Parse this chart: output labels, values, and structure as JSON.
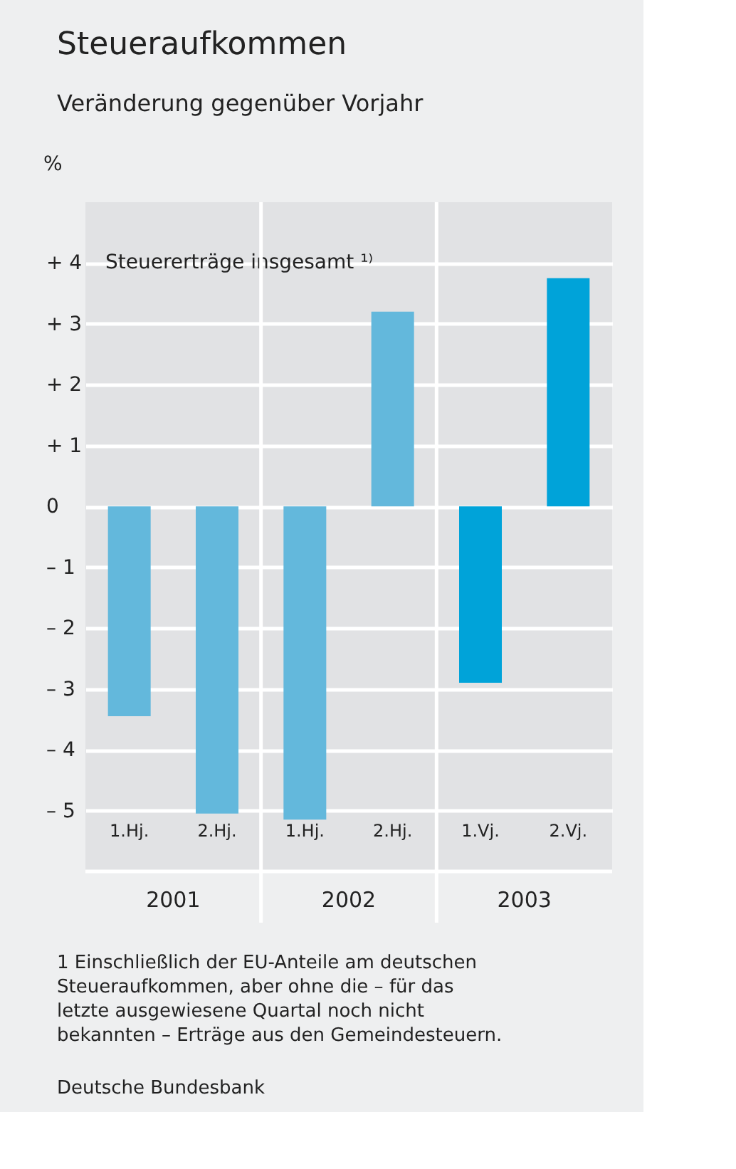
{
  "chart_data": {
    "type": "bar",
    "title": "Steueraufkommen",
    "subtitle": "Veränderung gegenüber Vorjahr",
    "ylabel": "%",
    "categories": [
      "1.Hj.",
      "2.Hj.",
      "1.Hj.",
      "2.Hj.",
      "1.Vj.",
      "2.Vj."
    ],
    "series": [
      {
        "name": "Steuererträge insgesamt ¹⁾",
        "values": [
          -3.45,
          -5.05,
          -5.15,
          3.2,
          -2.9,
          3.75
        ],
        "colors": [
          "#63b8dc",
          "#63b8dc",
          "#63b8dc",
          "#63b8dc",
          "#00a3d9",
          "#00a3d9"
        ]
      }
    ],
    "ylim": [
      -6,
      5
    ],
    "yticks": [
      {
        "value": -5,
        "label": "– 5"
      },
      {
        "value": -4,
        "label": "– 4"
      },
      {
        "value": -3,
        "label": "– 3"
      },
      {
        "value": -2,
        "label": "– 2"
      },
      {
        "value": -1,
        "label": "– 1"
      },
      0,
      {
        "value": 1,
        "label": "+ 1"
      },
      {
        "value": 2,
        "label": "+ 2"
      },
      {
        "value": 3,
        "label": "+ 3"
      },
      {
        "value": 4,
        "label": "+ 4"
      }
    ],
    "grid": "y",
    "annotations": [
      "2001",
      "2002",
      "2003",
      "1 Einschließlich der EU-Anteile am deutschen Steueraufkommen, aber ohne die – für das letzte ausgewiesene Quartal noch nicht bekannten – Erträge aus den Gemeindesteuern.",
      "Deutsche Bundesbank"
    ]
  }
}
